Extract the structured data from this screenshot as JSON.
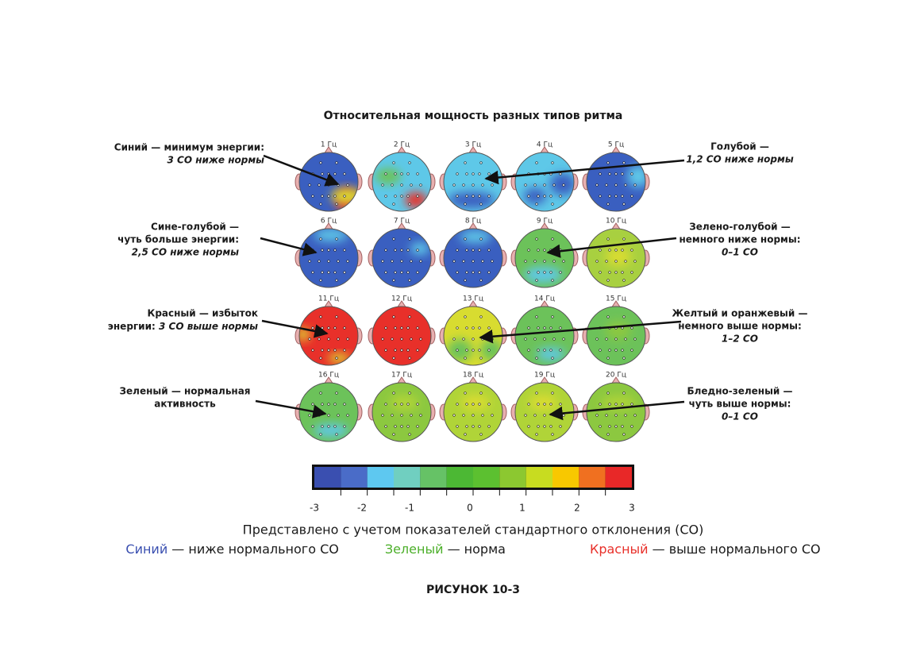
{
  "title": "Относительная мощность разных типов ритма",
  "maps": [
    {
      "label": "1 Гц"
    },
    {
      "label": "2 Гц"
    },
    {
      "label": "3 Гц"
    },
    {
      "label": "4 Гц"
    },
    {
      "label": "5 Гц"
    },
    {
      "label": "6 Гц"
    },
    {
      "label": "7 Гц"
    },
    {
      "label": "8 Гц"
    },
    {
      "label": "9 Гц"
    },
    {
      "label": "10 Гц"
    },
    {
      "label": "11 Гц"
    },
    {
      "label": "12 Гц"
    },
    {
      "label": "13 Гц"
    },
    {
      "label": "14 Гц"
    },
    {
      "label": "15 Гц"
    },
    {
      "label": "16 Гц"
    },
    {
      "label": "17 Гц"
    },
    {
      "label": "18 Гц"
    },
    {
      "label": "19 Гц"
    },
    {
      "label": "20 Гц"
    }
  ],
  "annotations_left": [
    {
      "lines": [
        "Синий — минимум энергии:",
        "3 СО ниже нормы"
      ]
    },
    {
      "lines": [
        "Сине-голубой —",
        "чуть больше энергии:",
        "2,5 СО ниже нормы"
      ]
    },
    {
      "lines": [
        "Красный — избыток",
        "энергии: ",
        "3 СО выше нормы"
      ]
    },
    {
      "lines": [
        "Зеленый — нормальная",
        "активность"
      ]
    }
  ],
  "annotations_right": [
    {
      "lines": [
        "Голубой —",
        "1,2 СО ниже нормы"
      ]
    },
    {
      "lines": [
        "Зелено-голубой —",
        "немного ниже нормы:",
        "0–1 СО"
      ]
    },
    {
      "lines": [
        "Желтый и оранжевый —",
        "немного выше нормы:",
        "1–2 СО"
      ]
    },
    {
      "lines": [
        "Бледно-зеленый —",
        "чуть выше нормы:",
        "0–1 СО"
      ]
    }
  ],
  "scale_ticks": [
    "-3",
    "-2",
    "-1",
    "0",
    "1",
    "2",
    "3"
  ],
  "legend": {
    "note": "Представлено с учетом показателей стандартного отклонения (СО)",
    "blue": "Синий",
    "blue_text": " — ниже нормального СО",
    "green": "Зеленый",
    "green_text": " — норма",
    "red": "Красный",
    "red_text": " — выше нормального СО"
  },
  "caption": "РИСУНОК 10-3"
}
